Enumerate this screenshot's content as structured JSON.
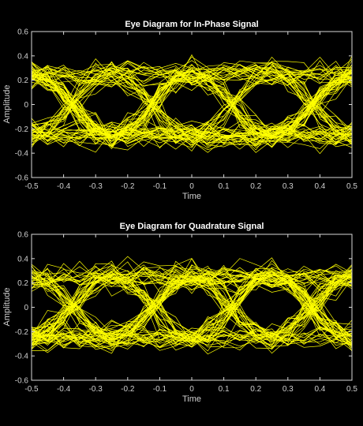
{
  "chart_data": [
    {
      "type": "line",
      "title": "Eye Diagram for In-Phase Signal",
      "xlabel": "Time",
      "ylabel": "Amplitude",
      "xlim": [
        -0.5,
        0.5
      ],
      "ylim": [
        -0.6,
        0.6
      ],
      "xticks": [
        "-0.5",
        "-0.4",
        "-0.3",
        "-0.2",
        "-0.1",
        "0",
        "0.1",
        "0.2",
        "0.3",
        "0.4",
        "0.5"
      ],
      "yticks": [
        "-0.6",
        "-0.4",
        "-0.2",
        "0",
        "0.2",
        "0.4",
        "0.6"
      ],
      "grid": false,
      "series_color": "#ffff00",
      "eye_centers": [
        0,
        -0.25,
        0.25,
        0.5,
        -0.5
      ],
      "levels": [
        0.25,
        -0.25
      ],
      "trace_count": 80
    },
    {
      "type": "line",
      "title": "Eye Diagram for Quadrature Signal",
      "xlabel": "Time",
      "ylabel": "Amplitude",
      "xlim": [
        -0.5,
        0.5
      ],
      "ylim": [
        -0.6,
        0.6
      ],
      "xticks": [
        "-0.5",
        "-0.4",
        "-0.3",
        "-0.2",
        "-0.1",
        "0",
        "0.1",
        "0.2",
        "0.3",
        "0.4",
        "0.5"
      ],
      "yticks": [
        "-0.6",
        "-0.4",
        "-0.2",
        "0",
        "0.2",
        "0.4",
        "0.6"
      ],
      "grid": false,
      "series_color": "#ffff00",
      "eye_centers": [
        0,
        -0.25,
        0.25,
        0.5,
        -0.5
      ],
      "levels": [
        0.25,
        -0.25
      ],
      "trace_count": 80
    }
  ]
}
